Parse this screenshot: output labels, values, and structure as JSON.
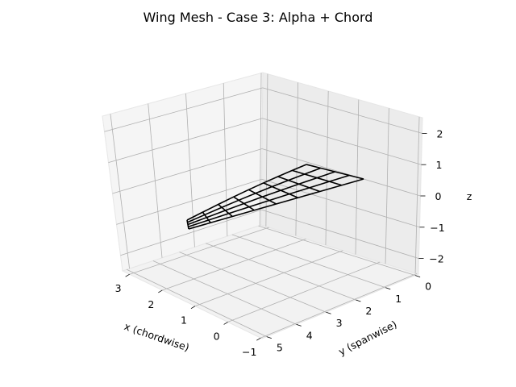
{
  "chart_data": {
    "type": "3d-wireframe",
    "title": "Wing Mesh - Case 3: Alpha + Chord",
    "xlabel": "x (chordwise)",
    "ylabel": "y (spanwise)",
    "zlabel": "z",
    "x_ticks": [
      "3",
      "2",
      "1",
      "0",
      "−1"
    ],
    "y_ticks": [
      "0",
      "1",
      "2",
      "3",
      "4",
      "5"
    ],
    "z_ticks": [
      "2",
      "1",
      "0",
      "−1",
      "−2"
    ],
    "grid": true,
    "mesh": {
      "spanwise_stations": 9,
      "chordwise_stations": 5,
      "span_range": [
        0,
        5
      ],
      "root_chord_range": [
        0,
        3
      ],
      "tip_chord_range": [
        0,
        0.5
      ],
      "color": "#000000"
    }
  }
}
